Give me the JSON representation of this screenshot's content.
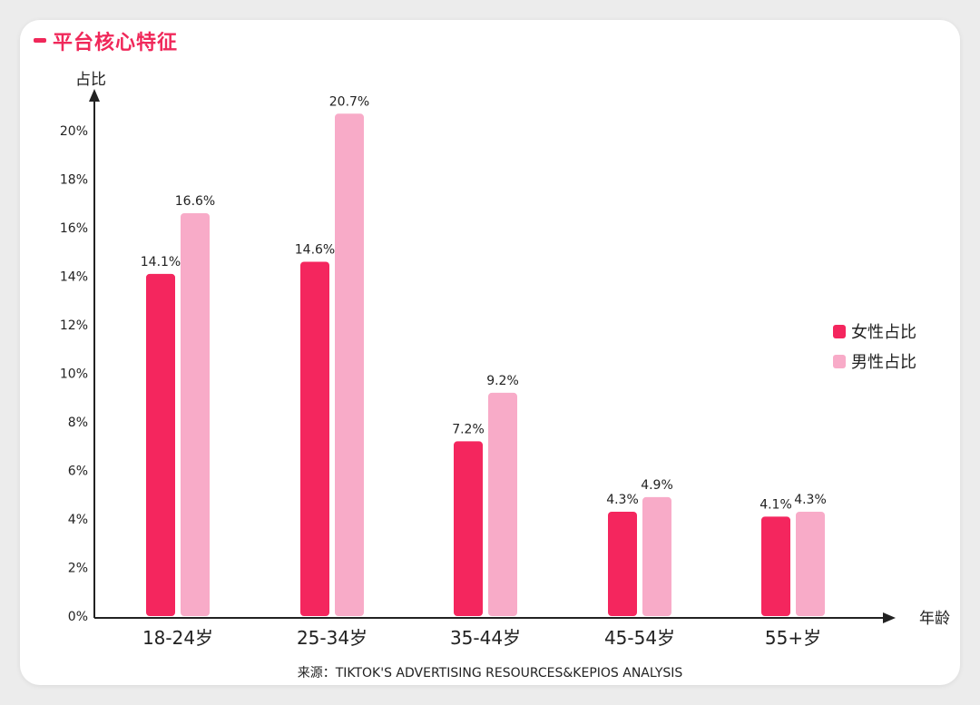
{
  "header": {
    "title": "平台核心特征"
  },
  "source_text": "来源：TIKTOK'S ADVERTISING RESOURCES&KEPIOS ANALYSIS",
  "colors": {
    "accent": "#f0285a",
    "female": "#f4265e",
    "male": "#f8abc8"
  },
  "chart_data": {
    "type": "bar",
    "ylabel": "占比",
    "xlabel": "年龄",
    "ylim": [
      0,
      22
    ],
    "yticks": [
      "0%",
      "2%",
      "4%",
      "6%",
      "8%",
      "10%",
      "12%",
      "14%",
      "16%",
      "18%",
      "20%"
    ],
    "categories": [
      "18-24岁",
      "25-34岁",
      "35-44岁",
      "45-54岁",
      "55+岁"
    ],
    "legend_position": "right",
    "series": [
      {
        "name": "女性占比",
        "values": [
          14.1,
          14.6,
          7.2,
          4.3,
          4.1
        ],
        "labels": [
          "14.1%",
          "14.6%",
          "7.2%",
          "4.3%",
          "4.1%"
        ]
      },
      {
        "name": "男性占比",
        "values": [
          16.6,
          20.7,
          9.2,
          4.9,
          4.3
        ],
        "labels": [
          "16.6%",
          "20.7%",
          "9.2%",
          "4.9%",
          "4.3%"
        ]
      }
    ]
  }
}
